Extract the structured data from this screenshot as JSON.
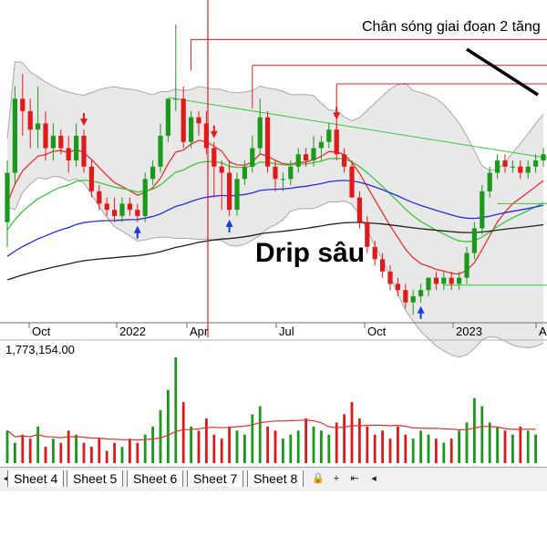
{
  "chart_data": [
    {
      "type": "candlestick",
      "x_ticks": [
        "Oct",
        "2022",
        "Apr",
        "Jul",
        "Oct",
        "2023",
        "Ap"
      ],
      "ylim": [
        8,
        34
      ],
      "indicators": [
        "Bollinger Bands",
        "MA20",
        "MA50",
        "MA100",
        "MA200"
      ],
      "annotations": [
        "Chân sóng giai đoạn 2 tăng",
        "Drip sâu"
      ],
      "candles": [
        {
          "o": 16,
          "h": 21,
          "l": 14,
          "c": 20
        },
        {
          "o": 20,
          "h": 27,
          "l": 19,
          "c": 26
        },
        {
          "o": 26,
          "h": 28,
          "l": 23,
          "c": 25
        },
        {
          "o": 25,
          "h": 26,
          "l": 22,
          "c": 23.5
        },
        {
          "o": 23.5,
          "h": 27,
          "l": 22,
          "c": 24
        },
        {
          "o": 24,
          "h": 25,
          "l": 21,
          "c": 22
        },
        {
          "o": 22,
          "h": 24,
          "l": 21,
          "c": 23
        },
        {
          "o": 23,
          "h": 23.5,
          "l": 21.5,
          "c": 22
        },
        {
          "o": 22,
          "h": 23,
          "l": 20,
          "c": 21
        },
        {
          "o": 21,
          "h": 24,
          "l": 20.5,
          "c": 23
        },
        {
          "o": 23,
          "h": 23.5,
          "l": 20,
          "c": 20.5
        },
        {
          "o": 20.5,
          "h": 21,
          "l": 18,
          "c": 18.5
        },
        {
          "o": 18.5,
          "h": 19,
          "l": 17,
          "c": 17.5
        },
        {
          "o": 17.5,
          "h": 18,
          "l": 16.5,
          "c": 17
        },
        {
          "o": 17,
          "h": 18,
          "l": 16,
          "c": 16.5
        },
        {
          "o": 16.5,
          "h": 18,
          "l": 16,
          "c": 17.5
        },
        {
          "o": 17.5,
          "h": 18,
          "l": 16.5,
          "c": 17
        },
        {
          "o": 17,
          "h": 17.5,
          "l": 16,
          "c": 16.5
        },
        {
          "o": 16.5,
          "h": 20,
          "l": 16,
          "c": 19.5
        },
        {
          "o": 19.5,
          "h": 21,
          "l": 19,
          "c": 20.5
        },
        {
          "o": 20.5,
          "h": 24,
          "l": 20,
          "c": 23
        },
        {
          "o": 23,
          "h": 26,
          "l": 22.5,
          "c": 26
        },
        {
          "o": 26,
          "h": 32,
          "l": 25,
          "c": 26
        },
        {
          "o": 26,
          "h": 27,
          "l": 22,
          "c": 22.5
        },
        {
          "o": 22.5,
          "h": 25,
          "l": 22,
          "c": 24.5
        },
        {
          "o": 24.5,
          "h": 25,
          "l": 23,
          "c": 24
        },
        {
          "o": 24,
          "h": 25,
          "l": 21.5,
          "c": 22
        },
        {
          "o": 22,
          "h": 22.5,
          "l": 18,
          "c": 20.5
        },
        {
          "o": 20.5,
          "h": 21,
          "l": 17,
          "c": 20
        },
        {
          "o": 20,
          "h": 21,
          "l": 16.5,
          "c": 17
        },
        {
          "o": 17,
          "h": 20,
          "l": 16.5,
          "c": 19.5
        },
        {
          "o": 19.5,
          "h": 21,
          "l": 19,
          "c": 20.5
        },
        {
          "o": 20.5,
          "h": 23,
          "l": 20,
          "c": 22
        },
        {
          "o": 22,
          "h": 26,
          "l": 21.5,
          "c": 24.5
        },
        {
          "o": 24.5,
          "h": 25,
          "l": 20,
          "c": 20.5
        },
        {
          "o": 20.5,
          "h": 21,
          "l": 18.5,
          "c": 19.5
        },
        {
          "o": 19.5,
          "h": 20,
          "l": 18.5,
          "c": 19.5
        },
        {
          "o": 19.5,
          "h": 21,
          "l": 19,
          "c": 20.5
        },
        {
          "o": 20.5,
          "h": 22,
          "l": 20,
          "c": 21.5
        },
        {
          "o": 21.5,
          "h": 22,
          "l": 20.5,
          "c": 21
        },
        {
          "o": 21,
          "h": 23,
          "l": 20.5,
          "c": 22
        },
        {
          "o": 22,
          "h": 23,
          "l": 21,
          "c": 22.5
        },
        {
          "o": 22.5,
          "h": 24,
          "l": 22,
          "c": 23.5
        },
        {
          "o": 23.5,
          "h": 24,
          "l": 21,
          "c": 21.5
        },
        {
          "o": 21.5,
          "h": 22,
          "l": 20,
          "c": 20.5
        },
        {
          "o": 20.5,
          "h": 21,
          "l": 18,
          "c": 18
        },
        {
          "o": 18,
          "h": 18.5,
          "l": 15.5,
          "c": 16
        },
        {
          "o": 16,
          "h": 16.5,
          "l": 13.5,
          "c": 14
        },
        {
          "o": 14,
          "h": 14.5,
          "l": 12.5,
          "c": 13
        },
        {
          "o": 13,
          "h": 13.5,
          "l": 11.5,
          "c": 12
        },
        {
          "o": 12,
          "h": 12.5,
          "l": 10.5,
          "c": 11
        },
        {
          "o": 11,
          "h": 11.5,
          "l": 10,
          "c": 10.5
        },
        {
          "o": 10.5,
          "h": 11,
          "l": 9,
          "c": 9.5
        },
        {
          "o": 9.5,
          "h": 10.5,
          "l": 8.5,
          "c": 10
        },
        {
          "o": 10,
          "h": 11,
          "l": 9.5,
          "c": 10.5
        },
        {
          "o": 10.5,
          "h": 11.5,
          "l": 10,
          "c": 11.5
        },
        {
          "o": 11.5,
          "h": 12,
          "l": 10.5,
          "c": 11
        },
        {
          "o": 11,
          "h": 12,
          "l": 10.5,
          "c": 11.5
        },
        {
          "o": 11.5,
          "h": 12,
          "l": 10.5,
          "c": 11
        },
        {
          "o": 11,
          "h": 12,
          "l": 10.5,
          "c": 11.5
        },
        {
          "o": 11.5,
          "h": 14,
          "l": 11,
          "c": 13.5
        },
        {
          "o": 13.5,
          "h": 16,
          "l": 13,
          "c": 15.5
        },
        {
          "o": 15.5,
          "h": 19,
          "l": 15,
          "c": 18.5
        },
        {
          "o": 18.5,
          "h": 20.5,
          "l": 18,
          "c": 20
        },
        {
          "o": 20,
          "h": 21.5,
          "l": 19.5,
          "c": 21
        },
        {
          "o": 21,
          "h": 21.5,
          "l": 20,
          "c": 20.5
        },
        {
          "o": 20.5,
          "h": 21,
          "l": 20,
          "c": 20.5
        },
        {
          "o": 20.5,
          "h": 21,
          "l": 19.5,
          "c": 20
        },
        {
          "o": 20,
          "h": 21,
          "l": 19.5,
          "c": 20.5
        },
        {
          "o": 20.5,
          "h": 21.5,
          "l": 20,
          "c": 21
        },
        {
          "o": 21,
          "h": 22,
          "l": 20.5,
          "c": 21.5
        }
      ],
      "volume": {
        "label": "1,773,154.00",
        "values": [
          0.8,
          0.5,
          0.7,
          0.6,
          0.9,
          0.4,
          0.6,
          0.5,
          0.8,
          0.7,
          0.5,
          0.4,
          0.6,
          0.3,
          0.5,
          0.4,
          0.6,
          0.5,
          0.7,
          0.9,
          1.3,
          1.8,
          2.6,
          1.5,
          0.9,
          0.8,
          1.1,
          0.7,
          0.6,
          0.9,
          0.8,
          0.7,
          1.2,
          1.4,
          0.9,
          0.8,
          0.6,
          0.7,
          0.8,
          1.1,
          0.9,
          0.8,
          0.7,
          1.0,
          1.2,
          1.5,
          1.1,
          0.9,
          0.7,
          0.8,
          0.6,
          0.9,
          0.7,
          0.6,
          0.8,
          0.7,
          0.6,
          0.5,
          0.6,
          0.8,
          1.0,
          1.6,
          1.4,
          1.0,
          0.9,
          0.8,
          0.7,
          0.9,
          0.8,
          0.7
        ]
      }
    }
  ],
  "tabs": [
    "Sheet 4",
    "Sheet 5",
    "Sheet 6",
    "Sheet 7",
    "Sheet 8"
  ],
  "colors": {
    "up": "#1a9a1a",
    "down": "#e01a1a",
    "band_fill": "#e8e8e8",
    "band_line": "#a8a8a8",
    "ma20": "#e83030",
    "ma50": "#38c838",
    "ma100": "#2a2ae8",
    "ma200": "#202020",
    "resistance": "#e02020"
  }
}
